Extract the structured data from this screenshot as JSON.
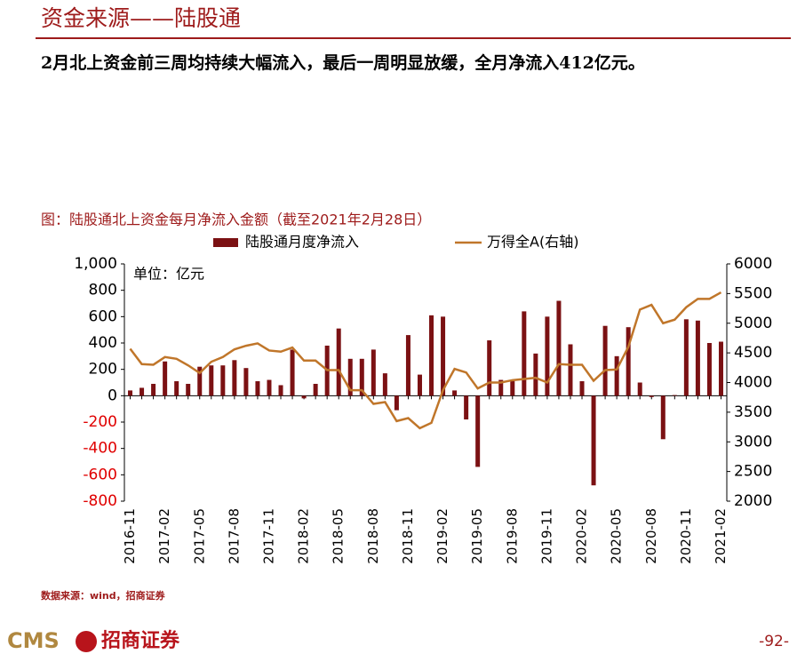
{
  "page": {
    "heading": "资金来源——陆股通",
    "text": "2月北上资金前三周均持续大幅流入，最后一周明显放缓，全月净流入412亿元。",
    "source": "数据来源：wind，招商证券",
    "logo": "CMS",
    "brand": "招商证券",
    "page_number": "-92-"
  },
  "chart_data": {
    "type": "bar",
    "title": "图：陆股通北上资金每月净流入金额（截至2021年2月28日）",
    "annotation": "单位：亿元",
    "categories": [
      "2016-11",
      null,
      null,
      "2017-02",
      null,
      null,
      "2017-05",
      null,
      null,
      "2017-08",
      null,
      null,
      "2017-11",
      null,
      null,
      "2018-02",
      null,
      null,
      "2018-05",
      null,
      null,
      "2018-08",
      null,
      null,
      "2018-11",
      null,
      null,
      "2019-02",
      null,
      null,
      "2019-05",
      null,
      null,
      "2019-08",
      null,
      null,
      "2019-11",
      null,
      null,
      "2020-02",
      null,
      null,
      "2020-05",
      null,
      null,
      "2020-08",
      null,
      null,
      "2020-11",
      null,
      null,
      "2021-02"
    ],
    "series": [
      {
        "name": "陆股通月度净流入",
        "type": "bar",
        "color": "#7b1113",
        "values": [
          40,
          60,
          90,
          260,
          110,
          90,
          220,
          230,
          230,
          270,
          210,
          110,
          120,
          80,
          350,
          -20,
          90,
          380,
          510,
          280,
          280,
          350,
          170,
          -110,
          460,
          160,
          610,
          600,
          40,
          -180,
          -540,
          420,
          120,
          110,
          640,
          320,
          600,
          720,
          390,
          110,
          -680,
          530,
          300,
          520,
          100,
          -10,
          -330,
          5,
          580,
          570,
          400,
          410
        ]
      },
      {
        "name": "万得全A(右轴)",
        "type": "line",
        "axis": "y2",
        "color": "#c0762a",
        "values": [
          4570,
          4310,
          4300,
          4430,
          4400,
          4290,
          4160,
          4350,
          4430,
          4560,
          4620,
          4660,
          4540,
          4520,
          4590,
          4370,
          4370,
          4210,
          4210,
          3870,
          3870,
          3640,
          3670,
          3350,
          3400,
          3230,
          3320,
          3870,
          4230,
          4170,
          3900,
          4000,
          4000,
          4040,
          4060,
          4080,
          4000,
          4310,
          4300,
          4300,
          4030,
          4210,
          4220,
          4600,
          5230,
          5310,
          5000,
          5060,
          5270,
          5410,
          5410,
          5520
        ]
      }
    ],
    "ylim": [
      -800,
      1000
    ],
    "yticks": [
      -800,
      -600,
      -400,
      -200,
      0,
      200,
      400,
      600,
      800,
      {
        "value": 1000,
        "label": "1,000"
      }
    ],
    "y2lim": [
      2000,
      6000
    ],
    "y2ticks": [
      2000,
      2500,
      3000,
      3500,
      4000,
      4500,
      5000,
      5500,
      6000
    ],
    "negative_tick_color": "#e00000",
    "legend": "top",
    "grid": false
  }
}
